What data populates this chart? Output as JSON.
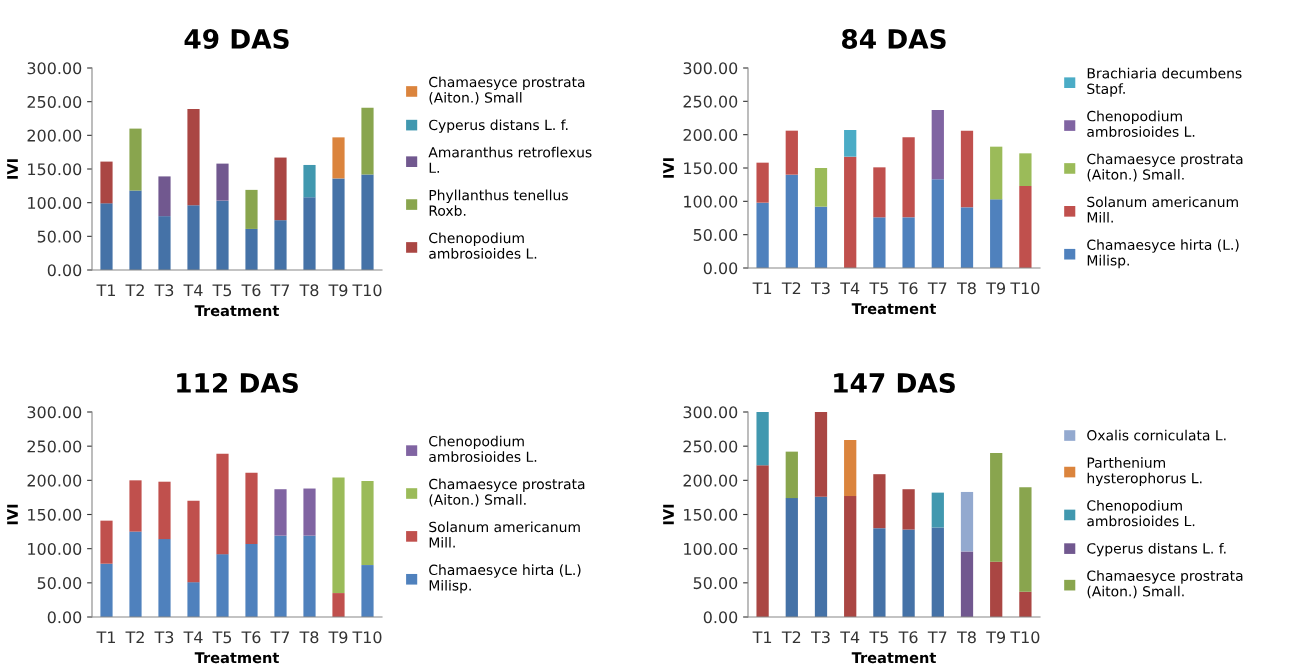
{
  "chart_data": [
    {
      "type": "bar",
      "stacked": true,
      "title": "49 DAS",
      "xlabel": "Treatment",
      "ylabel": "IVI",
      "legend": "right",
      "grid": false,
      "categories": [
        "T1",
        "T2",
        "T3",
        "T4",
        "T5",
        "T6",
        "T7",
        "T8",
        "T9",
        "T10"
      ],
      "ylim": [
        0,
        300
      ],
      "yticks": [
        {
          "value": 0,
          "label": "0.00"
        },
        {
          "value": 50,
          "label": "50.00"
        },
        {
          "value": 100,
          "label": "100.00"
        },
        {
          "value": 150,
          "label": "150.00"
        },
        {
          "value": 200,
          "label": "200.00"
        },
        {
          "value": 250,
          "label": "250.00"
        },
        {
          "value": 300,
          "label": "300.00"
        }
      ],
      "series": [
        {
          "color": "#4572a7",
          "values": [
            99,
            118,
            80,
            96,
            103,
            61,
            74,
            108,
            136,
            142
          ]
        },
        {
          "name": "Chenopodium ambrosioides L.",
          "color": "#aa4643",
          "values": [
            62,
            null,
            null,
            143,
            null,
            null,
            93,
            null,
            null,
            null
          ]
        },
        {
          "name": "Phyllanthus tenellus Roxb.",
          "color": "#89a54e",
          "values": [
            null,
            92,
            null,
            null,
            null,
            58,
            null,
            null,
            null,
            99
          ]
        },
        {
          "name": "Amaranthus retroflexus L.",
          "color": "#71588f",
          "values": [
            null,
            null,
            59,
            null,
            55,
            null,
            null,
            null,
            null,
            null
          ]
        },
        {
          "name": "Cyperus distans L. f.",
          "color": "#4198af",
          "values": [
            null,
            null,
            null,
            null,
            null,
            null,
            null,
            48,
            null,
            null
          ]
        },
        {
          "name": "Chamaesyce prostrata (Aiton.) Small",
          "color": "#db843d",
          "values": [
            null,
            null,
            null,
            null,
            null,
            null,
            null,
            null,
            61,
            null
          ]
        }
      ]
    },
    {
      "type": "bar",
      "stacked": true,
      "title": "84 DAS",
      "xlabel": "Treatment",
      "ylabel": "IVI",
      "legend": "right",
      "grid": false,
      "categories": [
        "T1",
        "T2",
        "T3",
        "T4",
        "T5",
        "T6",
        "T7",
        "T8",
        "T9",
        "T10"
      ],
      "ylim": [
        0,
        300
      ],
      "yticks": [
        {
          "value": 0,
          "label": "0.00"
        },
        {
          "value": 50,
          "label": "50.00"
        },
        {
          "value": 100,
          "label": "100.00"
        },
        {
          "value": 150,
          "label": "150.00"
        },
        {
          "value": 200,
          "label": "200.00"
        },
        {
          "value": 250,
          "label": "250.00"
        },
        {
          "value": 300,
          "label": "300.00"
        }
      ],
      "series": [
        {
          "name": "Chamaesyce hirta (L.) Milisp.",
          "color": "#4f81bd",
          "values": [
            98,
            140,
            92,
            null,
            76,
            76,
            133,
            91,
            103,
            null
          ]
        },
        {
          "name": "Solanum americanum Mill.",
          "color": "#c0504d",
          "values": [
            60,
            66,
            null,
            167,
            75,
            120,
            null,
            115,
            null,
            123
          ]
        },
        {
          "name": "Chamaesyce prostrata (Aiton.) Small.",
          "color": "#9bbb59",
          "values": [
            null,
            null,
            58,
            null,
            null,
            null,
            null,
            null,
            79,
            49
          ]
        },
        {
          "name": "Chenopodium ambrosioides L.",
          "color": "#8064a2",
          "values": [
            null,
            null,
            null,
            null,
            null,
            null,
            104,
            null,
            null,
            null
          ]
        },
        {
          "name": "Brachiaria decumbens Stapf.",
          "color": "#4bacc6",
          "values": [
            null,
            null,
            null,
            40,
            null,
            null,
            null,
            null,
            null,
            null
          ]
        }
      ]
    },
    {
      "type": "bar",
      "stacked": true,
      "title": "112 DAS",
      "xlabel": "Treatment",
      "ylabel": "IVI",
      "legend": "right",
      "grid": false,
      "categories": [
        "T1",
        "T2",
        "T3",
        "T4",
        "T5",
        "T6",
        "T7",
        "T8",
        "T9",
        "T10"
      ],
      "ylim": [
        0,
        300
      ],
      "yticks": [
        {
          "value": 0,
          "label": "0.00"
        },
        {
          "value": 50,
          "label": "50.00"
        },
        {
          "value": 100,
          "label": "100.00"
        },
        {
          "value": 150,
          "label": "150.00"
        },
        {
          "value": 200,
          "label": "200.00"
        },
        {
          "value": 250,
          "label": "250.00"
        },
        {
          "value": 300,
          "label": "300.00"
        }
      ],
      "series": [
        {
          "name": "Chamaesyce hirta (L.) Milisp.",
          "color": "#4f81bd",
          "values": [
            78,
            125,
            114,
            51,
            92,
            107,
            119,
            119,
            null,
            76
          ]
        },
        {
          "name": "Solanum americanum Mill.",
          "color": "#c0504d",
          "values": [
            63,
            75,
            84,
            119,
            147,
            104,
            null,
            null,
            35,
            null
          ]
        },
        {
          "name": "Chamaesyce prostrata (Aiton.) Small.",
          "color": "#9bbb59",
          "values": [
            null,
            null,
            null,
            null,
            null,
            null,
            null,
            null,
            169,
            123
          ]
        },
        {
          "name": "Chenopodium ambrosioides L.",
          "color": "#8064a2",
          "values": [
            null,
            null,
            null,
            null,
            null,
            null,
            68,
            69,
            null,
            null
          ]
        }
      ]
    },
    {
      "type": "bar",
      "stacked": true,
      "title": "147 DAS",
      "xlabel": "Treatment",
      "ylabel": "IVI",
      "legend": "right",
      "grid": false,
      "categories": [
        "T1",
        "T2",
        "T3",
        "T4",
        "T5",
        "T6",
        "T7",
        "T8",
        "T9",
        "T10"
      ],
      "ylim": [
        0,
        300
      ],
      "yticks": [
        {
          "value": 0,
          "label": "0.00"
        },
        {
          "value": 50,
          "label": "50.00"
        },
        {
          "value": 100,
          "label": "100.00"
        },
        {
          "value": 150,
          "label": "150.00"
        },
        {
          "value": 200,
          "label": "200.00"
        },
        {
          "value": 250,
          "label": "250.00"
        },
        {
          "value": 300,
          "label": "300.00"
        }
      ],
      "series": [
        {
          "color": "#4572a7",
          "values": [
            null,
            174,
            176,
            null,
            130,
            128,
            131,
            null,
            null,
            null
          ]
        },
        {
          "color": "#aa4643",
          "values": [
            222,
            null,
            124,
            177,
            79,
            59,
            null,
            null,
            81,
            37
          ]
        },
        {
          "name": "Chamaesyce prostrata (Aiton.) Small.",
          "color": "#89a54e",
          "values": [
            null,
            68,
            null,
            null,
            null,
            null,
            null,
            null,
            159,
            153
          ]
        },
        {
          "name": "Cyperus distans L. f.",
          "color": "#71588f",
          "values": [
            null,
            null,
            null,
            null,
            null,
            null,
            null,
            96,
            null,
            null
          ]
        },
        {
          "name": "Chenopodium ambrosioides L.",
          "color": "#4198af",
          "values": [
            78,
            null,
            null,
            null,
            null,
            null,
            51,
            null,
            null,
            null
          ]
        },
        {
          "name": "Parthenium hysterophorus L.",
          "color": "#db843d",
          "values": [
            null,
            null,
            null,
            82,
            null,
            null,
            null,
            null,
            null,
            null
          ]
        },
        {
          "name": "Oxalis corniculata L.",
          "color": "#93a9cf",
          "values": [
            null,
            null,
            null,
            null,
            null,
            null,
            null,
            87,
            null,
            null
          ]
        }
      ]
    }
  ]
}
